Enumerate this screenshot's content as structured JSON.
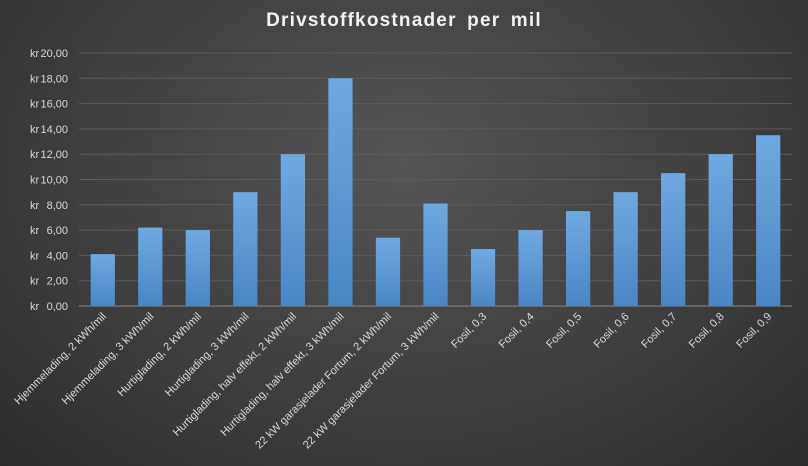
{
  "chart_data": {
    "type": "bar",
    "title": "Drivstoffkostnader  per mil",
    "xlabel": "",
    "ylabel": "",
    "categories": [
      "Hjemmelading, 2 kWh/mil",
      "Hjemmelading, 3 kWh/mil",
      "Hurtiglading, 2 kWh/mil",
      "Hurtiglading, 3 kWh/mil",
      "Hurtiglading, halv effekt, 2 kWh/mil",
      "Hurtiglading, halv effekt, 3 kWh/mil",
      "22 kW garasjelader Fortum, 2 kWh/mil",
      "22 kW garasjelader Fortum, 3 kWh/mil",
      "Fosil, 0,3",
      "Fosil, 0,4",
      "Fosil, 0,5",
      "Fosil, 0,6",
      "Fosil, 0,7",
      "Fosil, 0,8",
      "Fosil, 0,9"
    ],
    "values": [
      4.1,
      6.2,
      6.0,
      9.0,
      12.0,
      18.0,
      5.4,
      8.1,
      4.5,
      6.0,
      7.5,
      9.0,
      10.5,
      12.0,
      13.5
    ],
    "ylim": [
      0,
      20
    ],
    "yticks": [
      0,
      2,
      4,
      6,
      8,
      10,
      12,
      14,
      16,
      18,
      20
    ],
    "ytick_labels": [
      "kr  0,00",
      "kr  2,00",
      "kr  4,00",
      "kr  6,00",
      "kr  8,00",
      "kr  10,00",
      "kr  12,00",
      "kr  14,00",
      "kr  16,00",
      "kr  18,00",
      "kr  20,00"
    ],
    "grid": true,
    "legend": "none",
    "bar_color": "#5b9bd5"
  }
}
